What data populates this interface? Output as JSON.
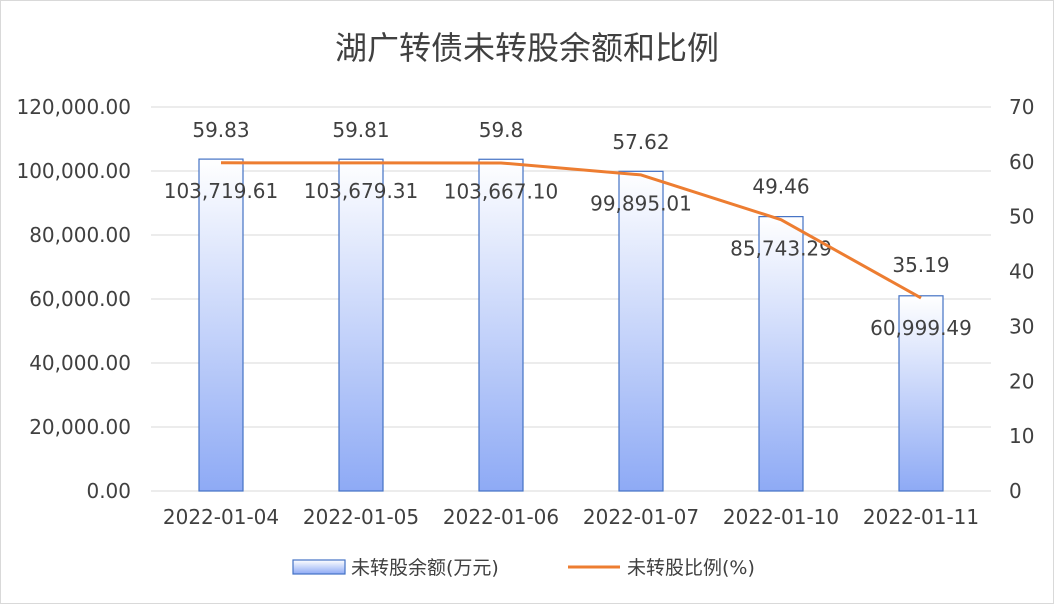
{
  "chart_data": {
    "type": "bar",
    "title": "湖广转债未转股余额和比例",
    "categories": [
      "2022-01-04",
      "2022-01-05",
      "2022-01-06",
      "2022-01-07",
      "2022-01-10",
      "2022-01-11"
    ],
    "series": [
      {
        "name": "未转股余额(万元)",
        "type": "bar",
        "axis": "left",
        "values": [
          103719.61,
          103679.31,
          103667.1,
          99895.01,
          85743.29,
          60999.49
        ],
        "labels": [
          "103,719.61",
          "103,679.31",
          "103,667.10",
          "99,895.01",
          "85,743.29",
          "60,999.49"
        ]
      },
      {
        "name": "未转股比例(%)",
        "type": "line",
        "axis": "right",
        "values": [
          59.83,
          59.81,
          59.8,
          57.62,
          49.46,
          35.19
        ],
        "labels": [
          "59.83",
          "59.81",
          "59.8",
          "57.62",
          "49.46",
          "35.19"
        ]
      }
    ],
    "y_left": {
      "min": 0,
      "max": 120000,
      "ticks": [
        "0.00",
        "20,000.00",
        "40,000.00",
        "60,000.00",
        "80,000.00",
        "100,000.00",
        "120,000.00"
      ],
      "tick_values": [
        0,
        20000,
        40000,
        60000,
        80000,
        100000,
        120000
      ]
    },
    "y_right": {
      "min": 0,
      "max": 70,
      "ticks": [
        "0",
        "10",
        "20",
        "30",
        "40",
        "50",
        "60",
        "70"
      ],
      "tick_values": [
        0,
        10,
        20,
        30,
        40,
        50,
        60,
        70
      ]
    },
    "grid": true,
    "legend_position": "bottom",
    "colors": {
      "bar_top": "#ffffff",
      "bar_bottom": "#8eaaf5",
      "bar_border": "#4472c4",
      "line": "#ed7d31",
      "grid": "#d9d9d9"
    }
  }
}
